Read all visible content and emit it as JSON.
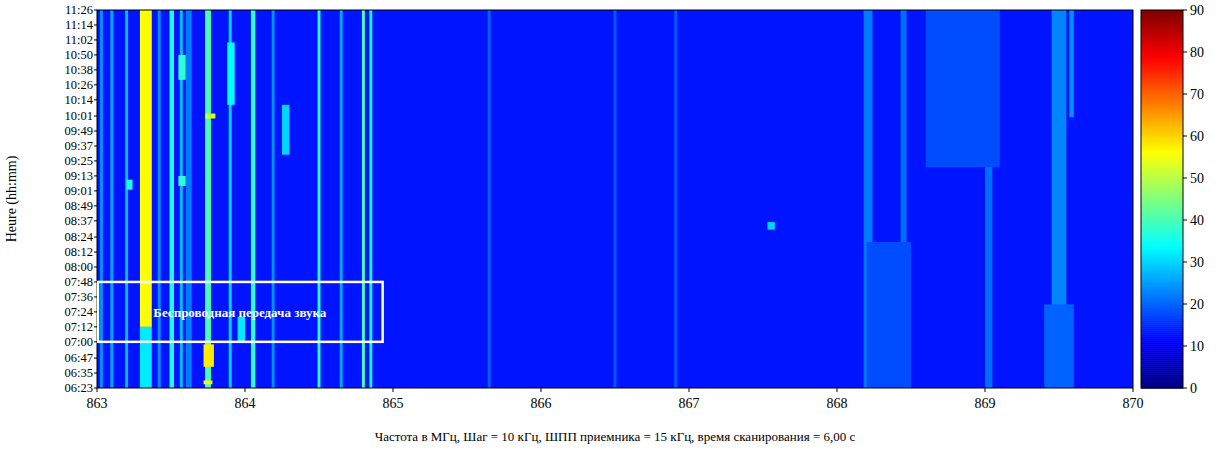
{
  "chart_data": {
    "type": "heatmap",
    "x_label": "Частота в МГц, Шаг = 10 кГц, ШПП приемника = 15 кГц, время сканирования = 6,00 с",
    "y_label": "Heure (hh:mm)",
    "xlim": [
      863,
      870
    ],
    "xticks": [
      863,
      864,
      865,
      866,
      867,
      868,
      869,
      870
    ],
    "ylim": [
      383,
      686
    ],
    "yticks": [
      {
        "value": 383,
        "label": "06:23"
      },
      {
        "value": 395,
        "label": "06:35"
      },
      {
        "value": 407,
        "label": "06:47"
      },
      {
        "value": 420,
        "label": "07:00"
      },
      {
        "value": 432,
        "label": "07:12"
      },
      {
        "value": 444,
        "label": "07:24"
      },
      {
        "value": 456,
        "label": "07:36"
      },
      {
        "value": 468,
        "label": "07:48"
      },
      {
        "value": 480,
        "label": "08:00"
      },
      {
        "value": 492,
        "label": "08:12"
      },
      {
        "value": 504,
        "label": "08:24"
      },
      {
        "value": 517,
        "label": "08:37"
      },
      {
        "value": 529,
        "label": "08:49"
      },
      {
        "value": 541,
        "label": "09:01"
      },
      {
        "value": 553,
        "label": "09:13"
      },
      {
        "value": 565,
        "label": "09:25"
      },
      {
        "value": 577,
        "label": "09:37"
      },
      {
        "value": 589,
        "label": "09:49"
      },
      {
        "value": 601,
        "label": "10:01"
      },
      {
        "value": 614,
        "label": "10:14"
      },
      {
        "value": 626,
        "label": "10:26"
      },
      {
        "value": 638,
        "label": "10:38"
      },
      {
        "value": 650,
        "label": "10:50"
      },
      {
        "value": 662,
        "label": "11:02"
      },
      {
        "value": 674,
        "label": "11:14"
      },
      {
        "value": 686,
        "label": "11:26"
      }
    ],
    "colorbar": {
      "range": [
        0,
        90
      ],
      "ticks": [
        0,
        10,
        20,
        30,
        40,
        50,
        60,
        70,
        80,
        90
      ]
    },
    "cells": [
      {
        "f": [
          863,
          870
        ],
        "t": [
          383,
          686
        ],
        "level": 13
      },
      {
        "f": [
          863.02,
          863.04
        ],
        "t": [
          383,
          686
        ],
        "level": 24
      },
      {
        "f": [
          863.09,
          863.11
        ],
        "t": [
          383,
          686
        ],
        "level": 26
      },
      {
        "f": [
          863.19,
          863.21
        ],
        "t": [
          383,
          686
        ],
        "level": 28
      },
      {
        "f": [
          863.29,
          863.37
        ],
        "t": [
          432,
          686
        ],
        "level": 56
      },
      {
        "f": [
          863.29,
          863.37
        ],
        "t": [
          383,
          432
        ],
        "level": 32
      },
      {
        "f": [
          863.41,
          863.43
        ],
        "t": [
          383,
          686
        ],
        "level": 24
      },
      {
        "f": [
          863.49,
          863.52
        ],
        "t": [
          383,
          686
        ],
        "level": 36
      },
      {
        "f": [
          863.56,
          863.58
        ],
        "t": [
          383,
          686
        ],
        "level": 28
      },
      {
        "f": [
          863.73,
          863.77
        ],
        "t": [
          383,
          686
        ],
        "level": 40
      },
      {
        "f": [
          863.72,
          863.79
        ],
        "t": [
          400,
          418
        ],
        "level": 58
      },
      {
        "f": [
          863.72,
          863.78
        ],
        "t": [
          386,
          389
        ],
        "level": 55
      },
      {
        "f": [
          863.73,
          863.8
        ],
        "t": [
          599,
          603
        ],
        "level": 52
      },
      {
        "f": [
          863.89,
          863.91
        ],
        "t": [
          383,
          686
        ],
        "level": 30
      },
      {
        "f": [
          864.04,
          864.07
        ],
        "t": [
          383,
          686
        ],
        "level": 38
      },
      {
        "f": [
          864.49,
          864.51
        ],
        "t": [
          383,
          686
        ],
        "level": 36
      },
      {
        "f": [
          864.64,
          864.66
        ],
        "t": [
          383,
          686
        ],
        "level": 26
      },
      {
        "f": [
          864.79,
          864.81
        ],
        "t": [
          383,
          686
        ],
        "level": 40
      },
      {
        "f": [
          864.84,
          864.86
        ],
        "t": [
          383,
          686
        ],
        "level": 34
      },
      {
        "f": [
          863.55,
          863.6
        ],
        "t": [
          630,
          650
        ],
        "level": 38
      },
      {
        "f": [
          863.88,
          863.93
        ],
        "t": [
          610,
          660
        ],
        "level": 34
      },
      {
        "f": [
          863.2,
          863.24
        ],
        "t": [
          542,
          550
        ],
        "level": 36
      },
      {
        "f": [
          863.55,
          863.6
        ],
        "t": [
          545,
          553
        ],
        "level": 38
      },
      {
        "f": [
          864.25,
          864.3
        ],
        "t": [
          570,
          610
        ],
        "level": 30
      },
      {
        "f": [
          863.95,
          864.0
        ],
        "t": [
          420,
          440
        ],
        "level": 32
      },
      {
        "f": [
          865.64,
          865.66
        ],
        "t": [
          383,
          686
        ],
        "level": 20
      },
      {
        "f": [
          866.49,
          866.51
        ],
        "t": [
          383,
          686
        ],
        "level": 19
      },
      {
        "f": [
          866.9,
          866.92
        ],
        "t": [
          383,
          686
        ],
        "level": 19
      },
      {
        "f": [
          867.53,
          867.58
        ],
        "t": [
          510,
          516
        ],
        "level": 30
      },
      {
        "f": [
          868.18,
          868.24
        ],
        "t": [
          383,
          686
        ],
        "level": 22
      },
      {
        "f": [
          868.43,
          868.47
        ],
        "t": [
          383,
          686
        ],
        "level": 21
      },
      {
        "f": [
          869.0,
          869.05
        ],
        "t": [
          383,
          686
        ],
        "level": 21
      },
      {
        "f": [
          869.45,
          869.55
        ],
        "t": [
          383,
          686
        ],
        "level": 23
      },
      {
        "f": [
          869.57,
          869.6
        ],
        "t": [
          600,
          686
        ],
        "level": 24
      },
      {
        "f": [
          869.4,
          869.6
        ],
        "t": [
          383,
          450
        ],
        "level": 20
      },
      {
        "f": [
          868.2,
          868.5
        ],
        "t": [
          383,
          500
        ],
        "level": 18
      },
      {
        "f": [
          868.6,
          869.1
        ],
        "t": [
          560,
          686
        ],
        "level": 18
      },
      {
        "f": [
          863.6,
          863.64
        ],
        "t": [
          383,
          686
        ],
        "level": 22
      },
      {
        "f": [
          864.18,
          864.2
        ],
        "t": [
          383,
          686
        ],
        "level": 24
      }
    ],
    "annotations": [
      {
        "text": "Беспроводная передача звука",
        "x": [
          863,
          864.93
        ],
        "y": [
          420,
          468
        ]
      }
    ]
  }
}
